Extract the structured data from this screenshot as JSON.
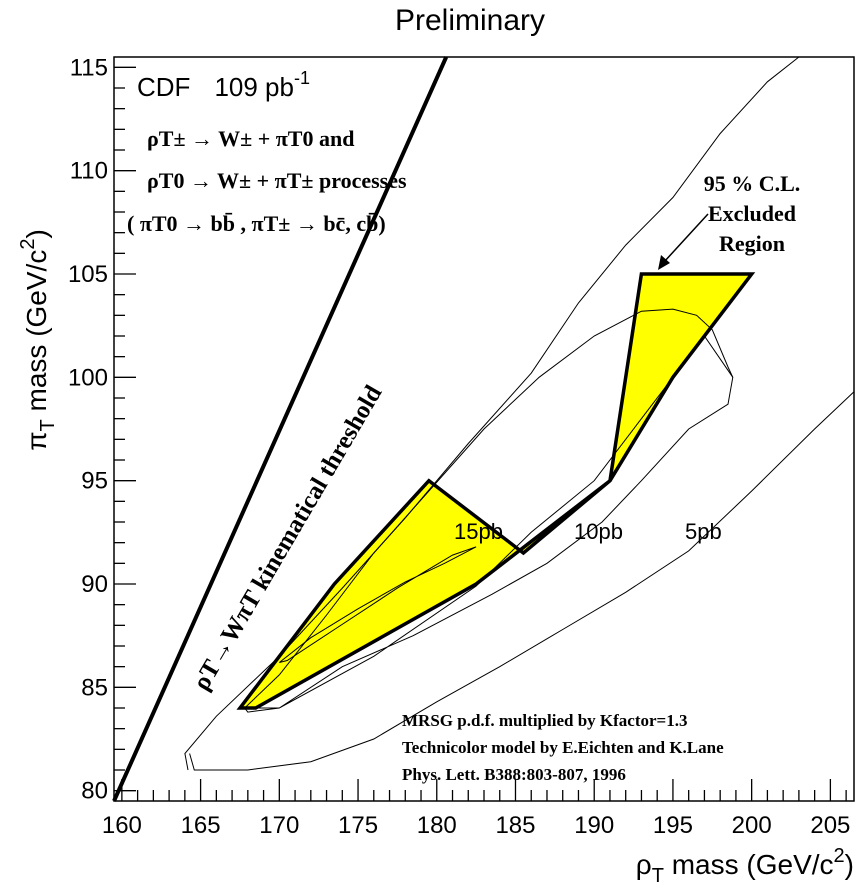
{
  "header": {
    "title": "Preliminary"
  },
  "chart_data": {
    "type": "line",
    "title": "Preliminary",
    "xlabel": {
      "main": "ρ",
      "sub": "T",
      "rest": " mass (GeV/c",
      "sup": "2",
      "end": ")"
    },
    "ylabel": {
      "main": "π",
      "sub": "T",
      "rest": " mass (GeV/c",
      "sup": "2",
      "end": ")"
    },
    "xlim": [
      159.5,
      206.5
    ],
    "ylim": [
      79.5,
      115.5
    ],
    "xticks": [
      160,
      165,
      170,
      175,
      180,
      185,
      190,
      195,
      200,
      205
    ],
    "yticks": [
      80,
      85,
      90,
      95,
      100,
      105,
      110,
      115
    ],
    "grid": false,
    "experiment": {
      "name": "CDF",
      "lumi": "109 pb",
      "lumi_sup": "-1"
    },
    "process_lines": [
      "ρT± → W± + πT0 and",
      "ρT0 → W± + πT± processes",
      "( πT0 → bb̄ , πT± → bc̄, cb̄)"
    ],
    "excluded_label": [
      "95 % C.L.",
      "Excluded",
      "Region"
    ],
    "threshold_label": "ρT→WπT kinematical threshold",
    "footnotes": [
      "MRSG p.d.f.  multiplied by Kfactor=1.3",
      "Technicolor model by E.Eichten and K.Lane",
      "Phys. Lett. B388:803-807, 1996"
    ],
    "contour_labels": [
      "15pb",
      "10pb",
      "5pb"
    ],
    "colors": {
      "excluded_fill": "#ffff00",
      "line": "#000000"
    },
    "series": [
      {
        "x": [
          159.5,
          180.6
        ],
        "y": [
          79.5,
          115.5
        ]
      },
      {
        "points": [
          [
            167.5,
            84
          ],
          [
            168.5,
            84
          ],
          [
            182.5,
            90
          ],
          [
            191,
            95
          ],
          [
            193,
            105
          ],
          [
            200,
            105
          ],
          [
            195,
            100
          ],
          [
            191,
            95
          ],
          [
            185.5,
            91.5
          ],
          [
            179.5,
            95
          ],
          [
            173.5,
            90
          ],
          [
            167.5,
            84
          ]
        ]
      },
      {
        "points": [
          [
            167.8,
            84
          ],
          [
            170,
            84
          ],
          [
            176,
            86.5
          ],
          [
            182.5,
            89.9
          ],
          [
            186,
            92.5
          ],
          [
            190,
            95
          ],
          [
            193,
            98
          ],
          [
            195,
            100
          ],
          [
            197,
            102
          ],
          [
            198.8,
            100
          ],
          [
            198.5,
            98.7
          ],
          [
            196,
            97.5
          ],
          [
            193,
            95
          ],
          [
            190.5,
            93
          ],
          [
            187,
            91
          ],
          [
            183.5,
            89.5
          ],
          [
            178.5,
            87.5
          ],
          [
            174,
            86
          ],
          [
            170,
            84
          ],
          [
            168,
            83.8
          ],
          [
            167.8,
            84
          ]
        ]
      },
      {
        "points": [
          [
            167.8,
            84
          ],
          [
            170,
            85.6
          ],
          [
            173,
            88.5
          ],
          [
            176,
            91.5
          ],
          [
            179.5,
            94.5
          ],
          [
            183,
            97.5
          ],
          [
            186.5,
            100
          ],
          [
            190,
            102
          ],
          [
            193,
            103.2
          ],
          [
            195,
            103.3
          ],
          [
            196.5,
            103
          ],
          [
            197.5,
            102.3
          ],
          [
            198.5,
            100.5
          ],
          [
            198.8,
            100
          ]
        ]
      },
      {
        "points": [
          [
            170,
            86.2
          ],
          [
            172,
            87.4
          ],
          [
            175,
            88.8
          ],
          [
            178,
            90.1
          ],
          [
            180.5,
            91
          ],
          [
            182,
            91.6
          ],
          [
            182.5,
            91.8
          ],
          [
            181,
            91.4
          ],
          [
            177.5,
            89.8
          ],
          [
            173.5,
            87.8
          ],
          [
            170.5,
            86.3
          ],
          [
            170,
            86.2
          ]
        ]
      },
      {
        "points": [
          [
            164.2,
            81
          ],
          [
            164,
            81.8
          ],
          [
            166,
            83.6
          ],
          [
            170,
            86.5
          ],
          [
            174,
            89.8
          ],
          [
            178,
            93.2
          ],
          [
            182,
            96.8
          ],
          [
            186,
            100.2
          ],
          [
            189,
            103.6
          ],
          [
            192,
            106.4
          ],
          [
            195,
            108.7
          ],
          [
            198,
            111.8
          ],
          [
            201,
            114.3
          ],
          [
            203,
            115.5
          ]
        ]
      },
      {
        "points": [
          [
            164.3,
            81.8
          ],
          [
            164.6,
            81
          ],
          [
            168,
            81
          ],
          [
            172,
            81.4
          ],
          [
            176,
            82.5
          ],
          [
            180,
            84.3
          ],
          [
            184,
            86
          ],
          [
            188,
            87.8
          ],
          [
            192,
            89.6
          ],
          [
            196,
            91.6
          ],
          [
            200,
            94.5
          ],
          [
            204,
            97.5
          ],
          [
            206.5,
            99.3
          ]
        ]
      }
    ]
  }
}
